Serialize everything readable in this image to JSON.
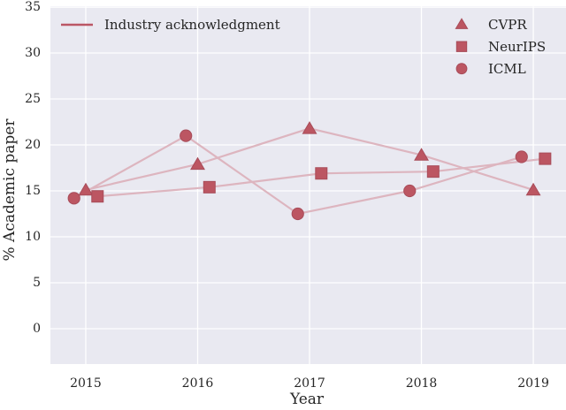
{
  "chart_data": {
    "type": "line",
    "title": "",
    "xlabel": "Year",
    "ylabel": "% Academic paper",
    "x": [
      2015,
      2016,
      2017,
      2018,
      2019
    ],
    "xtick_labels": [
      "2015",
      "2016",
      "2017",
      "2018",
      "2019"
    ],
    "yticks": [
      0,
      5,
      10,
      15,
      20,
      25,
      30,
      35
    ],
    "xlim": [
      2014.684,
      2019.292
    ],
    "ylim": [
      -3.85,
      35.1
    ],
    "grid": true,
    "series": [
      {
        "name": "CVPR",
        "marker": "triangle",
        "x_offset": 0.0,
        "values": [
          15.1,
          17.9,
          21.8,
          18.9,
          15.1
        ]
      },
      {
        "name": "NeurIPS",
        "marker": "square",
        "x_offset": 0.105,
        "values": [
          14.4,
          15.4,
          16.9,
          17.1,
          18.5
        ]
      },
      {
        "name": "ICML",
        "marker": "circle",
        "x_offset": -0.105,
        "values": [
          14.2,
          21.0,
          12.5,
          15.0,
          18.7
        ]
      }
    ],
    "line_legend": {
      "label": "Industry acknowledgment",
      "position": "upper left"
    },
    "series_legend_position": "upper right",
    "colors": {
      "marker": "#bc5662",
      "marker_edge": "#a84c59",
      "series_line": "#ddb5bf",
      "legend_line": "#bb5765",
      "plot_bg": "#e9e9f1",
      "grid": "#ffffff",
      "text": "#262626"
    }
  }
}
